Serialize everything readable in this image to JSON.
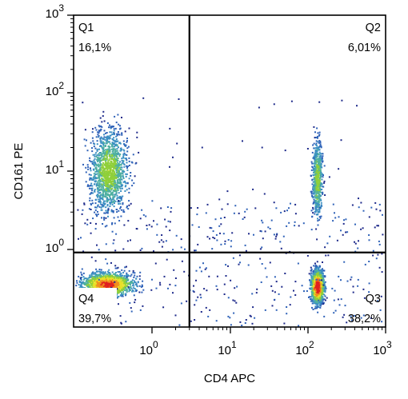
{
  "chart_data": {
    "type": "scatter",
    "subtype": "flow-cytometry-density-dot-plot",
    "xlabel": "CD4 APC",
    "ylabel": "CD161 PE",
    "x_scale": "biexponential",
    "y_scale": "biexponential",
    "x_ticks": [
      {
        "value": 1,
        "base": "10",
        "exp": "0"
      },
      {
        "value": 10,
        "base": "10",
        "exp": "1"
      },
      {
        "value": 100,
        "base": "10",
        "exp": "2"
      },
      {
        "value": 1000,
        "base": "10",
        "exp": "3"
      }
    ],
    "y_ticks": [
      {
        "value": 1,
        "base": "10",
        "exp": "0"
      },
      {
        "value": 10,
        "base": "10",
        "exp": "1"
      },
      {
        "value": 100,
        "base": "10",
        "exp": "2"
      },
      {
        "value": 1000,
        "base": "10",
        "exp": "3"
      }
    ],
    "gate": {
      "x": 3,
      "y": 0.9
    },
    "quadrants": [
      {
        "name": "Q1",
        "percent": "16,1%",
        "corner": "top-left"
      },
      {
        "name": "Q2",
        "percent": "6,01%",
        "corner": "top-right"
      },
      {
        "name": "Q3",
        "percent": "38,2%",
        "corner": "bottom-right"
      },
      {
        "name": "Q4",
        "percent": "39,7%",
        "corner": "bottom-left"
      }
    ],
    "populations": [
      {
        "quadrant": "Q4",
        "x_center": 0.22,
        "y_center": 0.3,
        "fraction": 0.397
      },
      {
        "quadrant": "Q3",
        "x_center": 130,
        "y_center": 0.25,
        "fraction": 0.382
      },
      {
        "quadrant": "Q1",
        "x_center": 0.25,
        "y_center": 10,
        "fraction": 0.161
      },
      {
        "quadrant": "Q2",
        "x_center": 130,
        "y_center": 8,
        "fraction": 0.0601
      }
    ],
    "density_colors": [
      "#1e2a8a",
      "#2f62b8",
      "#3b8fc2",
      "#4fb0a0",
      "#8fcf3a",
      "#e8e02a",
      "#f09020",
      "#e02020"
    ],
    "grid": false,
    "legend": "none"
  }
}
